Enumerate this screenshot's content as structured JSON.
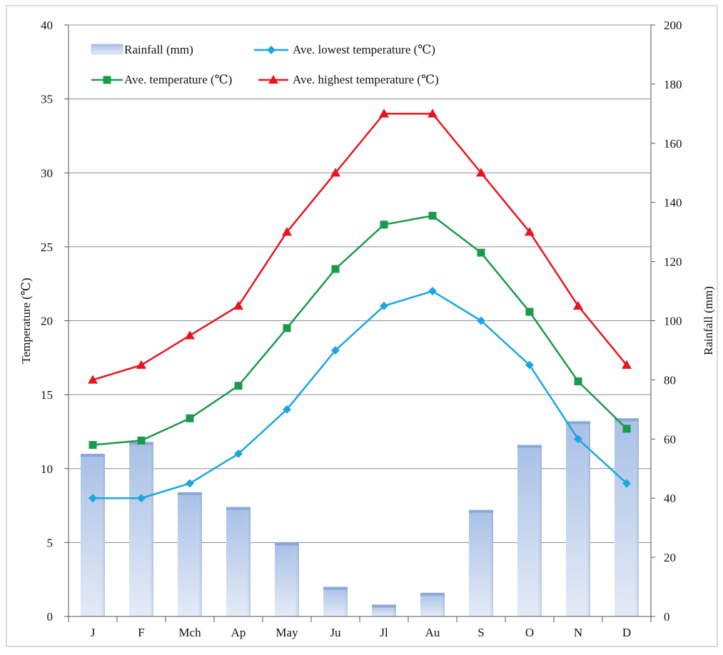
{
  "chart_data": {
    "type": "bar+line",
    "categories": [
      "J",
      "F",
      "Mch",
      "Ap",
      "May",
      "Ju",
      "Jl",
      "Au",
      "S",
      "O",
      "N",
      "D"
    ],
    "left_axis": {
      "label": "Temperature (℃)",
      "range": [
        0,
        40
      ],
      "ticks": [
        "0",
        "5",
        "10",
        "15",
        "20",
        "25",
        "30",
        "35",
        "40"
      ]
    },
    "right_axis": {
      "label": "Rainfall (mm)",
      "range": [
        0,
        200
      ],
      "ticks": [
        "0",
        "20",
        "40",
        "60",
        "80",
        "100",
        "120",
        "140",
        "160",
        "180",
        "200"
      ]
    },
    "grid": true,
    "legend_placement": "top-left",
    "series": [
      {
        "name": "Rainfall (mm)",
        "kind": "bar",
        "axis": "right",
        "color": "#9db8e0",
        "values": [
          55,
          59,
          42,
          37,
          25,
          10,
          4,
          8,
          36,
          58,
          66,
          67
        ]
      },
      {
        "name": "Ave. lowest temperature (℃)",
        "kind": "line",
        "axis": "left",
        "color": "#1aa7e0",
        "marker": "diamond",
        "values": [
          8,
          8,
          9,
          11,
          14,
          18,
          21,
          22,
          20,
          17,
          12,
          9
        ]
      },
      {
        "name": "Ave. temperature (℃)",
        "kind": "line",
        "axis": "left",
        "color": "#1a9a4a",
        "marker": "square",
        "values": [
          11.6,
          11.9,
          13.4,
          15.6,
          19.5,
          23.5,
          26.5,
          27.1,
          24.6,
          20.6,
          15.9,
          12.7
        ]
      },
      {
        "name": "Ave. highest temperature (℃)",
        "kind": "line",
        "axis": "left",
        "color": "#e8141e",
        "marker": "triangle",
        "values": [
          16,
          17,
          19,
          21,
          26,
          30,
          34,
          34,
          30,
          26,
          21,
          17
        ]
      }
    ]
  }
}
